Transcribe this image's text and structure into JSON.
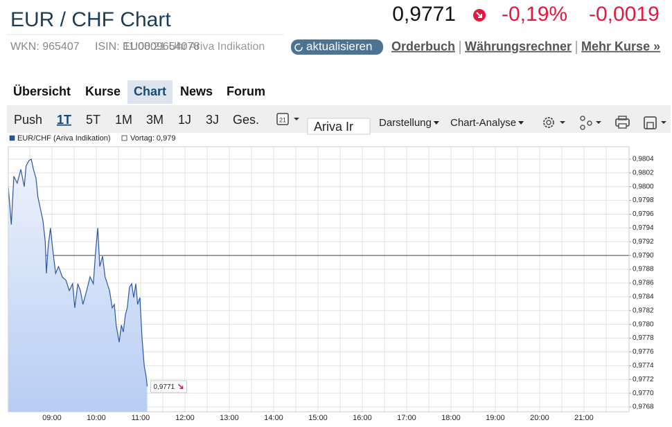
{
  "header": {
    "title": "EUR / CHF Chart",
    "price": "0,9771",
    "change_pct": "-0,19%",
    "change_abs": "-0,0019",
    "wkn": "WKN: 965407",
    "isin": "ISIN: EU0009654078",
    "overlay_text": "11:08:21 Uhr Ariva Indikation"
  },
  "links": {
    "refresh": "aktualisieren",
    "items": [
      "Orderbuch",
      "Währungsrechner",
      "Mehr Kurse »"
    ]
  },
  "tabs": {
    "items": [
      "Übersicht",
      "Kurse",
      "Chart",
      "News",
      "Forum"
    ],
    "active": 2
  },
  "toolbar": {
    "ranges": [
      "Push",
      "1T",
      "5T",
      "1M",
      "3M",
      "1J",
      "3J",
      "Ges."
    ],
    "active": 1,
    "menus": [
      "Vergleich",
      "Darstellung",
      "Chart-Analyse"
    ],
    "overlay": "Ariva Ir"
  },
  "chart_data": {
    "type": "line",
    "series": [
      {
        "name": "EUR/CHF (Ariva Indikation)",
        "color": "#2a55a5",
        "x": [
          481,
          485,
          488.5,
          493,
          498,
          502.6,
          505,
          509,
          512,
          515,
          518.5,
          521,
          524,
          528,
          531,
          532.6,
          535,
          538,
          541,
          545,
          549,
          554,
          559,
          563.5,
          568,
          571,
          575,
          578.5,
          582,
          587,
          591.6,
          596,
          599,
          602,
          604.75,
          608.5,
          612,
          615,
          618,
          621.6,
          624.4,
          627,
          631,
          634,
          636.6,
          639.4,
          642,
          645,
          648,
          650.7,
          653.5,
          656,
          659,
          662,
          665,
          667.6,
          669
        ],
        "values": [
          0.98,
          0.97945,
          0.98015,
          0.98005,
          0.98025,
          0.98,
          0.9803,
          0.98038,
          0.9804,
          0.98025,
          0.98012,
          0.97985,
          0.9797,
          0.9795,
          0.9792,
          0.97874,
          0.97914,
          0.9794,
          0.9791,
          0.97874,
          0.97884,
          0.97869,
          0.97864,
          0.97849,
          0.97859,
          0.97824,
          0.97859,
          0.97849,
          0.97829,
          0.97849,
          0.97869,
          0.97859,
          0.97904,
          0.9794,
          0.97884,
          0.97899,
          0.97869,
          0.97859,
          0.97849,
          0.97824,
          0.97829,
          0.97799,
          0.97774,
          0.97799,
          0.97789,
          0.97814,
          0.97824,
          0.97854,
          0.97859,
          0.97839,
          0.97859,
          0.97829,
          0.97839,
          0.97779,
          0.97739,
          0.97724,
          0.9771
        ],
        "value_labels": [
          null,
          null,
          null,
          null,
          null,
          null,
          null,
          null,
          null,
          null,
          null,
          null,
          null,
          null,
          null,
          null,
          null,
          null,
          null,
          null,
          null,
          null,
          null,
          null,
          null,
          null,
          null,
          null,
          null,
          null,
          null,
          null,
          null,
          null,
          null,
          null,
          null,
          null,
          null,
          null,
          null,
          null,
          null,
          null,
          null,
          null,
          null,
          null,
          null,
          null,
          null,
          null,
          null,
          null,
          null,
          null,
          "0,9771"
        ]
      }
    ],
    "reference": {
      "name": "Vortag: 0,979",
      "value": 0.979,
      "color": "#444444"
    },
    "xlim": [
      481,
      1321
    ],
    "xticks": [
      {
        "value": 540,
        "label": "09:00"
      },
      {
        "value": 600,
        "label": "10:00"
      },
      {
        "value": 660,
        "label": "11:00"
      },
      {
        "value": 720,
        "label": "12:00"
      },
      {
        "value": 780,
        "label": "13:00"
      },
      {
        "value": 840,
        "label": "14:00"
      },
      {
        "value": 900,
        "label": "15:00"
      },
      {
        "value": 960,
        "label": "16:00"
      },
      {
        "value": 1020,
        "label": "17:00"
      },
      {
        "value": 1080,
        "label": "18:00"
      },
      {
        "value": 1140,
        "label": "19:00"
      },
      {
        "value": 1200,
        "label": "20:00"
      },
      {
        "value": 1260,
        "label": "21:00"
      }
    ],
    "ylim": [
      0.97673,
      0.98058
    ],
    "yticks": [
      {
        "value": 0.9768,
        "label": "0,9768"
      },
      {
        "value": 0.977,
        "label": "0,9770"
      },
      {
        "value": 0.9772,
        "label": "0,9772"
      },
      {
        "value": 0.9774,
        "label": "0,9774"
      },
      {
        "value": 0.9776,
        "label": "0,9776"
      },
      {
        "value": 0.9778,
        "label": "0,9778"
      },
      {
        "value": 0.978,
        "label": "0,9780"
      },
      {
        "value": 0.9782,
        "label": "0,9782"
      },
      {
        "value": 0.9784,
        "label": "0,9784"
      },
      {
        "value": 0.9786,
        "label": "0,9786"
      },
      {
        "value": 0.9788,
        "label": "0,9788"
      },
      {
        "value": 0.979,
        "label": "0,9790"
      },
      {
        "value": 0.9792,
        "label": "0,9792"
      },
      {
        "value": 0.9794,
        "label": "0,9794"
      },
      {
        "value": 0.9796,
        "label": "0,9796"
      },
      {
        "value": 0.9798,
        "label": "0,9798"
      },
      {
        "value": 0.98,
        "label": "0,9800"
      },
      {
        "value": 0.9802,
        "label": "0,9802"
      },
      {
        "value": 0.9804,
        "label": "0,9804"
      }
    ],
    "grid": true
  }
}
